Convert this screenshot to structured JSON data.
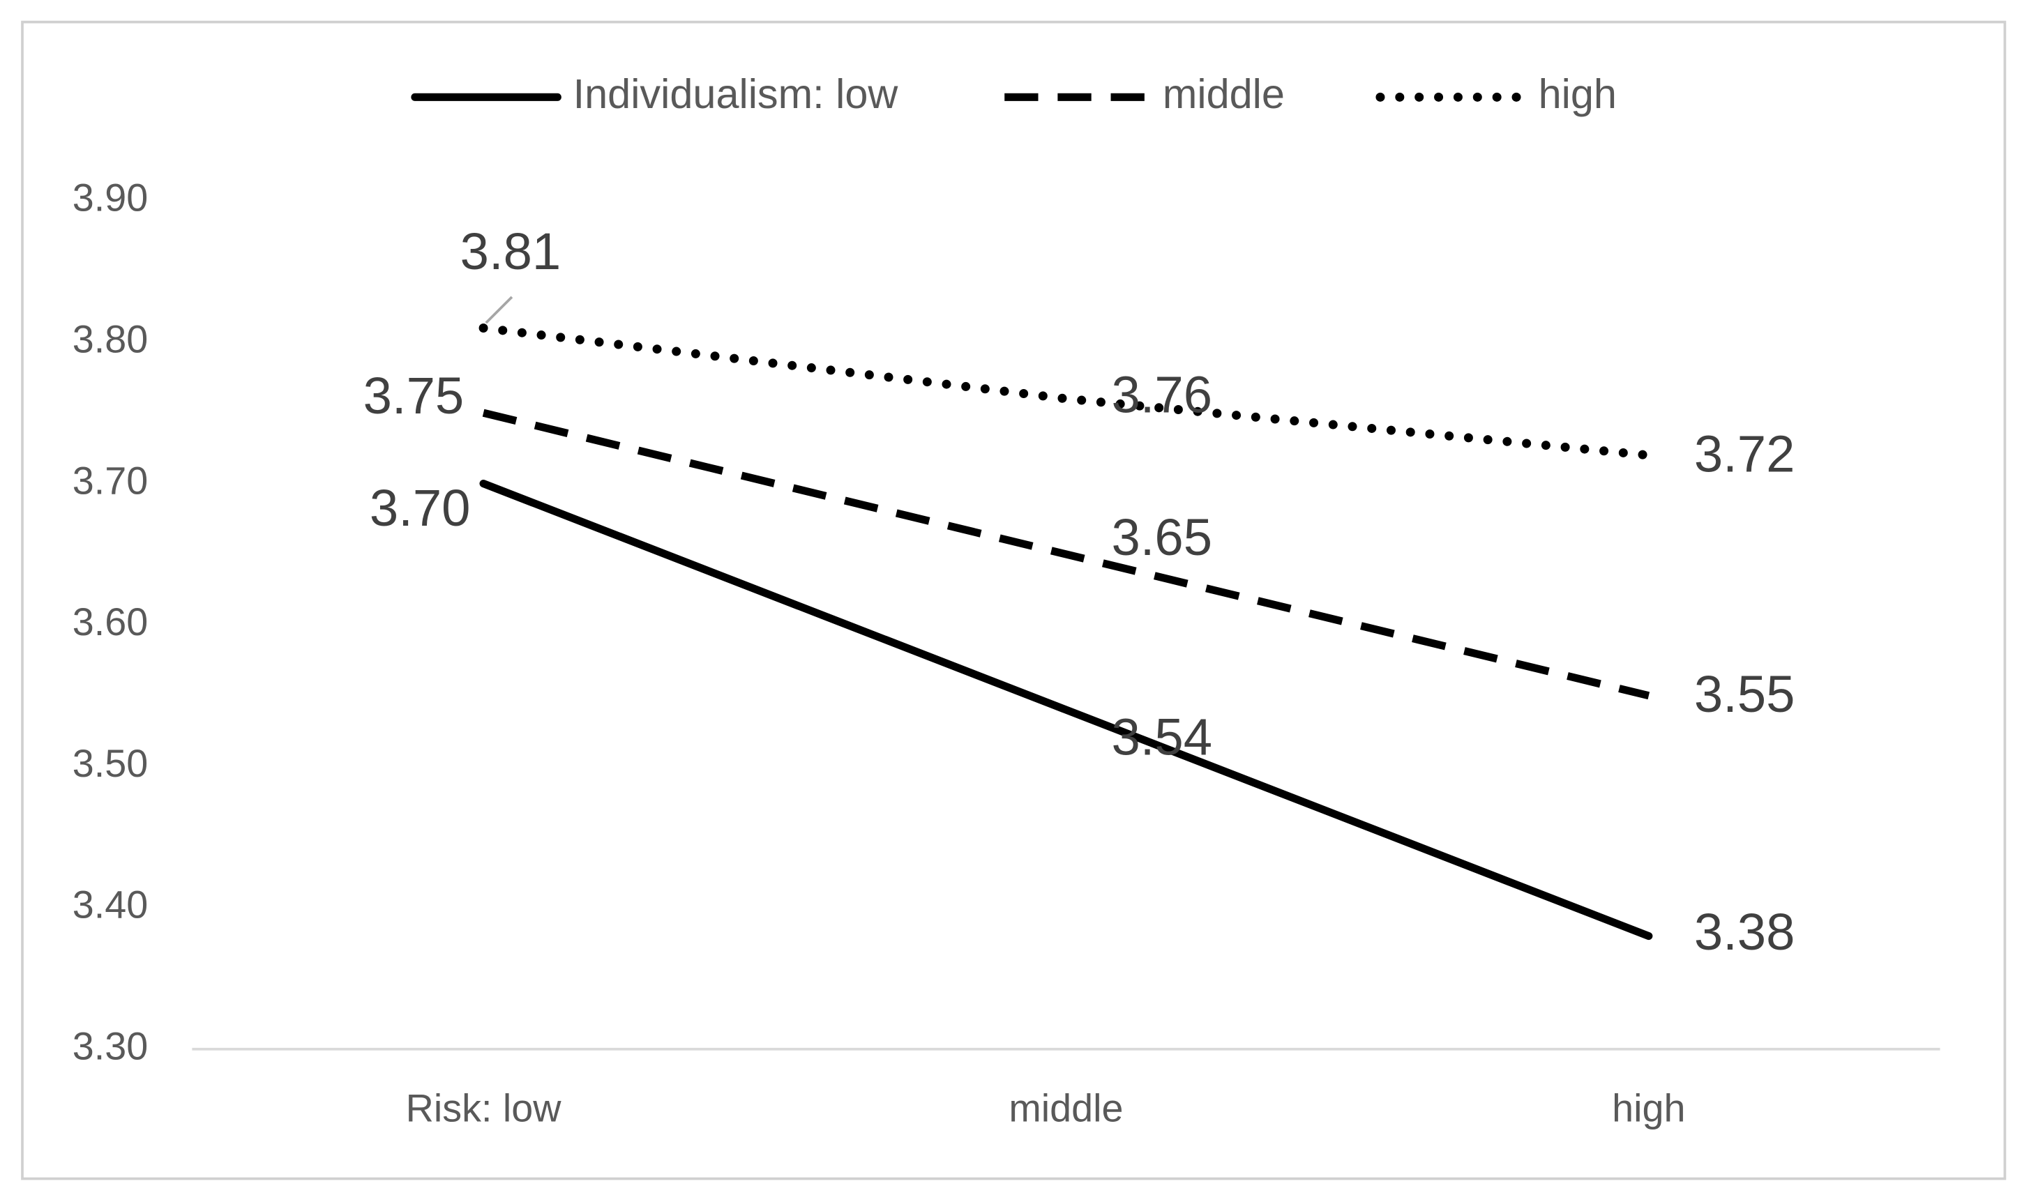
{
  "chart_data": {
    "type": "line",
    "categories": [
      "Risk: low",
      "middle",
      "high"
    ],
    "series": [
      {
        "name": "Individualism: low",
        "color": "#000000",
        "style": "solid",
        "values": [
          3.7,
          3.54,
          3.38
        ],
        "value_labels": [
          "3.70",
          "3.54",
          "3.38"
        ]
      },
      {
        "name": "middle",
        "color": "#000000",
        "style": "dashed",
        "values": [
          3.75,
          3.65,
          3.55
        ],
        "value_labels": [
          "3.75",
          "3.65",
          "3.55"
        ]
      },
      {
        "name": "high",
        "color": "#000000",
        "style": "dotted",
        "values": [
          3.81,
          3.76,
          3.72
        ],
        "value_labels": [
          "3.81",
          "3.76",
          "3.72"
        ]
      }
    ],
    "ylim": [
      3.3,
      3.9
    ],
    "yticks": [
      {
        "value": 3.3,
        "label": "3.30"
      },
      {
        "value": 3.4,
        "label": "3.40"
      },
      {
        "value": 3.5,
        "label": "3.50"
      },
      {
        "value": 3.6,
        "label": "3.60"
      },
      {
        "value": 3.7,
        "label": "3.70"
      },
      {
        "value": 3.8,
        "label": "3.80"
      },
      {
        "value": 3.9,
        "label": "3.90"
      }
    ],
    "grid": false,
    "legend": "top"
  }
}
